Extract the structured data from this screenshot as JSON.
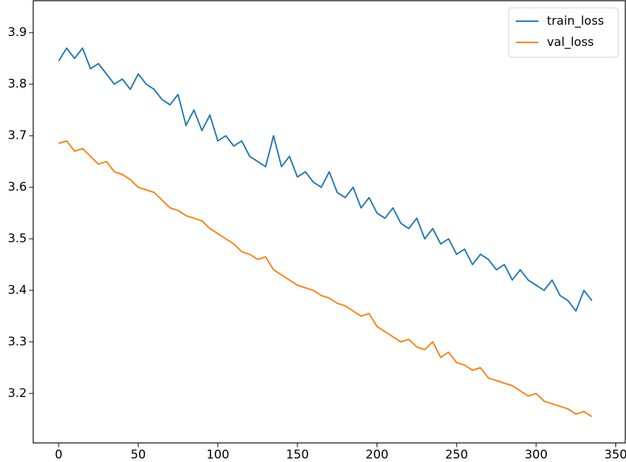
{
  "chart_data": {
    "type": "line",
    "x": [
      0,
      5,
      10,
      15,
      20,
      25,
      30,
      35,
      40,
      45,
      50,
      55,
      60,
      65,
      70,
      75,
      80,
      85,
      90,
      95,
      100,
      105,
      110,
      115,
      120,
      125,
      130,
      135,
      140,
      145,
      150,
      155,
      160,
      165,
      170,
      175,
      180,
      185,
      190,
      195,
      200,
      205,
      210,
      215,
      220,
      225,
      230,
      235,
      240,
      245,
      250,
      255,
      260,
      265,
      270,
      275,
      280,
      285,
      290,
      295,
      300,
      305,
      310,
      315,
      320,
      325,
      330,
      335
    ],
    "series": [
      {
        "name": "train_loss",
        "color": "#1f77b4",
        "values": [
          3.845,
          3.87,
          3.85,
          3.87,
          3.83,
          3.84,
          3.82,
          3.8,
          3.81,
          3.79,
          3.82,
          3.8,
          3.79,
          3.77,
          3.76,
          3.78,
          3.72,
          3.75,
          3.71,
          3.74,
          3.69,
          3.7,
          3.68,
          3.69,
          3.66,
          3.65,
          3.64,
          3.7,
          3.64,
          3.66,
          3.62,
          3.63,
          3.61,
          3.6,
          3.63,
          3.59,
          3.58,
          3.6,
          3.56,
          3.58,
          3.55,
          3.54,
          3.56,
          3.53,
          3.52,
          3.54,
          3.5,
          3.52,
          3.49,
          3.5,
          3.47,
          3.48,
          3.45,
          3.47,
          3.46,
          3.44,
          3.45,
          3.42,
          3.44,
          3.42,
          3.41,
          3.4,
          3.42,
          3.39,
          3.38,
          3.36,
          3.4,
          3.38
        ]
      },
      {
        "name": "val_loss",
        "color": "#ff7f0e",
        "values": [
          3.685,
          3.69,
          3.67,
          3.675,
          3.66,
          3.645,
          3.65,
          3.63,
          3.625,
          3.615,
          3.6,
          3.595,
          3.59,
          3.575,
          3.56,
          3.555,
          3.545,
          3.54,
          3.535,
          3.52,
          3.51,
          3.5,
          3.49,
          3.475,
          3.47,
          3.46,
          3.465,
          3.44,
          3.43,
          3.42,
          3.41,
          3.405,
          3.4,
          3.39,
          3.385,
          3.375,
          3.37,
          3.36,
          3.35,
          3.355,
          3.33,
          3.32,
          3.31,
          3.3,
          3.305,
          3.29,
          3.285,
          3.3,
          3.27,
          3.28,
          3.26,
          3.255,
          3.245,
          3.25,
          3.23,
          3.225,
          3.22,
          3.215,
          3.205,
          3.195,
          3.2,
          3.185,
          3.18,
          3.175,
          3.17,
          3.16,
          3.165,
          3.155
        ]
      }
    ],
    "xlim": [
      -16,
      356
    ],
    "xticks": [
      0,
      50,
      100,
      150,
      200,
      250,
      300,
      350
    ],
    "ylim": [
      3.104,
      3.962
    ],
    "yticks": [
      3.2,
      3.3,
      3.4,
      3.5,
      3.6,
      3.7,
      3.8,
      3.9
    ],
    "legend": "upper right"
  }
}
